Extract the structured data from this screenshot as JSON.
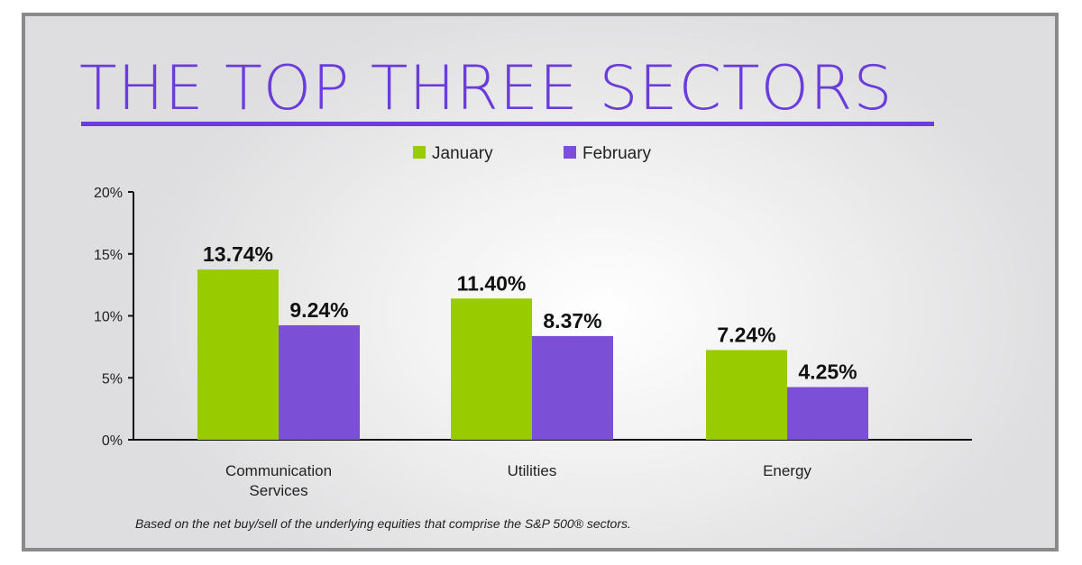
{
  "chart_data": {
    "type": "bar",
    "title": "THE TOP THREE SECTORS",
    "categories": [
      "Communication Services",
      "Utilities",
      "Energy"
    ],
    "category_lines": [
      [
        "Communication",
        "Services"
      ],
      [
        "Utilities"
      ],
      [
        "Energy"
      ]
    ],
    "series": [
      {
        "name": "January",
        "values": [
          13.74,
          11.4,
          7.24
        ],
        "labels": [
          "13.74%",
          "11.40%",
          "7.24%"
        ],
        "color": "#99cc00"
      },
      {
        "name": "February",
        "values": [
          9.24,
          8.37,
          4.25
        ],
        "labels": [
          "9.24%",
          "8.37%",
          "4.25%"
        ],
        "color": "#7b4fd6"
      }
    ],
    "ylim": [
      0,
      20
    ],
    "yticks": [
      0,
      5,
      10,
      15,
      20
    ],
    "ytick_labels": [
      "0%",
      "5%",
      "10%",
      "15%",
      "20%"
    ],
    "xlabel": "",
    "ylabel": "",
    "grid": false,
    "legend_position": "top-center",
    "footnote": "Based on the net buy/sell of the underlying equities that comprise the S&P 500® sectors.",
    "accent_color": "#6a3ddb"
  }
}
